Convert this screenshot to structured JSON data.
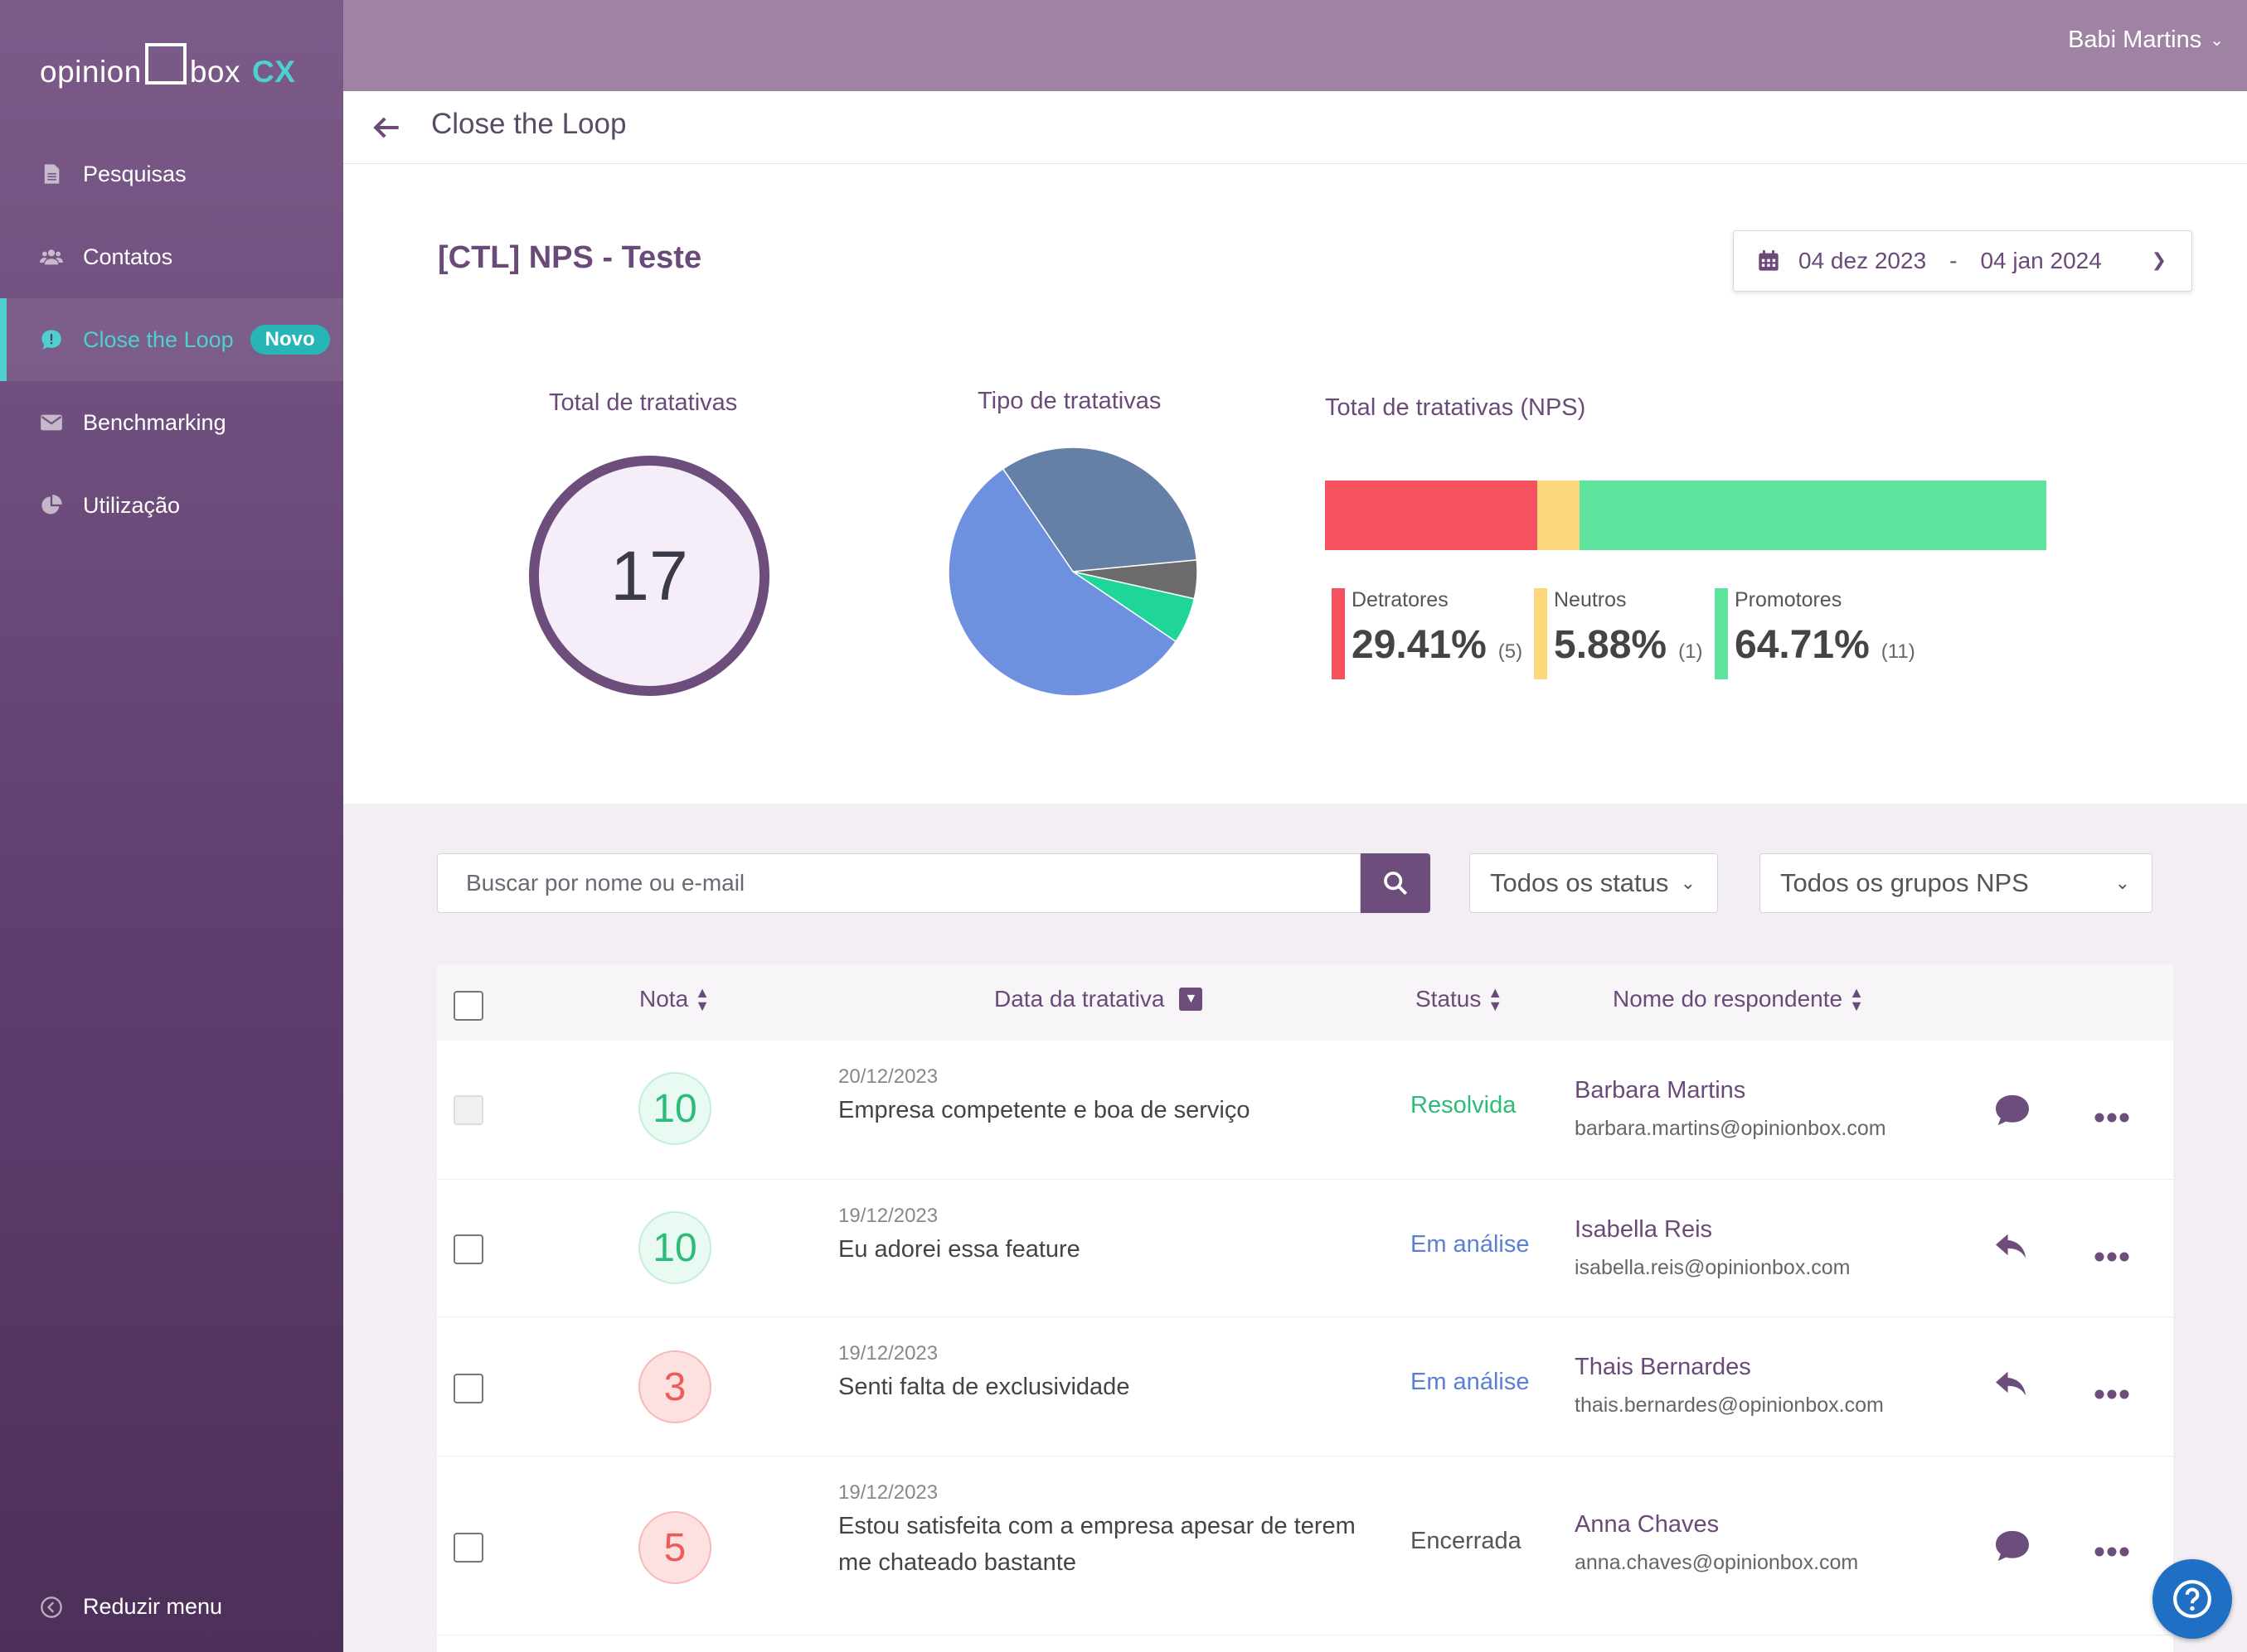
{
  "app": {
    "logo_text_1": "opinion",
    "logo_text_2": "box",
    "logo_text_3": "CX"
  },
  "sidebar": {
    "items": [
      {
        "label": "Pesquisas",
        "icon": "document-icon"
      },
      {
        "label": "Contatos",
        "icon": "users-icon"
      },
      {
        "label": "Close the Loop",
        "icon": "chat-alert-icon",
        "badge": "Novo",
        "active": true
      },
      {
        "label": "Benchmarking",
        "icon": "envelope-icon"
      },
      {
        "label": "Utilização",
        "icon": "pie-chart-icon"
      }
    ],
    "reduce_label": "Reduzir menu"
  },
  "topbar": {
    "user_name": "Babi Martins"
  },
  "page": {
    "title": "Close the Loop"
  },
  "dashboard": {
    "survey_title": "[CTL] NPS - Teste",
    "date_start": "04 dez 2023",
    "date_sep": "-",
    "date_end": "04 jan 2024",
    "total_label": "Total de tratativas",
    "total_value": "17",
    "type_label": "Tipo de tratativas",
    "nps_label": "Total de tratativas (NPS)",
    "nps_groups": [
      {
        "label": "Detratores",
        "pct": "29.41%",
        "count": "(5)",
        "fraction": 0.2941,
        "color": "#f5515f"
      },
      {
        "label": "Neutros",
        "pct": "5.88%",
        "count": "(1)",
        "fraction": 0.0588,
        "color": "#fdd77b"
      },
      {
        "label": "Promotores",
        "pct": "64.71%",
        "count": "(11)",
        "fraction": 0.6471,
        "color": "#5ee39e"
      }
    ]
  },
  "chart_data": {
    "type": "pie",
    "title": "Tipo de tratativas",
    "slices": [
      {
        "value": 0.33,
        "color": "#667fa6"
      },
      {
        "value": 0.05,
        "color": "#6b6b6b"
      },
      {
        "value": 0.06,
        "color": "#1fd698"
      },
      {
        "value": 0.56,
        "color": "#6d91de"
      }
    ]
  },
  "filters": {
    "search_placeholder": "Buscar por nome ou e-mail",
    "status_select": "Todos os status",
    "nps_select": "Todos os grupos NPS"
  },
  "table": {
    "headers": {
      "nota": "Nota",
      "data": "Data da tratativa",
      "status": "Status",
      "nome": "Nome do respondente"
    },
    "rows": [
      {
        "score": "10",
        "level": "high",
        "date": "20/12/2023",
        "text": "Empresa competente e boa de serviço",
        "status": "Resolvida",
        "status_color": "#2dbb78",
        "name": "Barbara Martins",
        "email": "barbara.martins@opinionbox.com",
        "action": "chat-icon",
        "checkbox_disabled": true
      },
      {
        "score": "10",
        "level": "high",
        "date": "19/12/2023",
        "text": "Eu adorei essa feature",
        "status": "Em análise",
        "status_color": "#5b7fd6",
        "name": "Isabella Reis",
        "email": "isabella.reis@opinionbox.com",
        "action": "reply-icon"
      },
      {
        "score": "3",
        "level": "low",
        "date": "19/12/2023",
        "text": "Senti falta de exclusividade",
        "status": "Em análise",
        "status_color": "#5b7fd6",
        "name": "Thais Bernardes",
        "email": "thais.bernardes@opinionbox.com",
        "action": "reply-icon"
      },
      {
        "score": "5",
        "level": "low",
        "date": "19/12/2023",
        "text": "Estou satisfeita com a empresa apesar de terem me chateado bastante",
        "status": "Encerrada",
        "status_color": "#555555",
        "name": "Anna Chaves",
        "email": "anna.chaves@opinionbox.com",
        "action": "chat-icon"
      }
    ]
  }
}
